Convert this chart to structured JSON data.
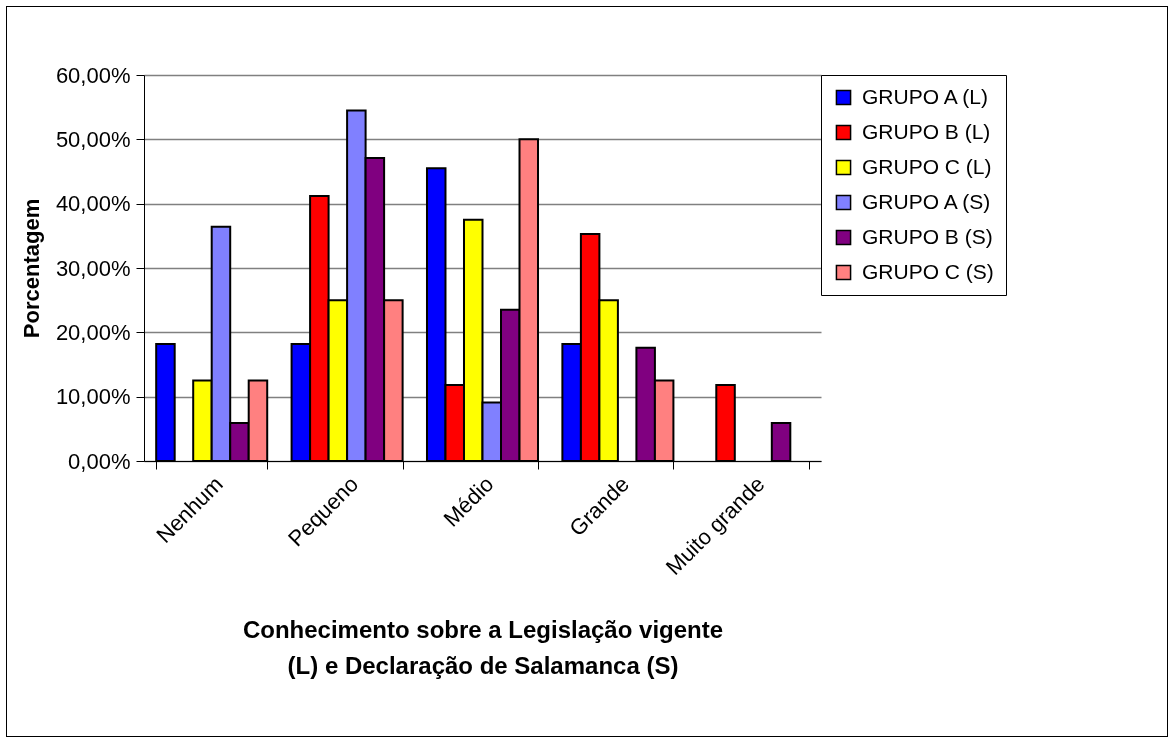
{
  "chart_data": {
    "type": "bar",
    "xlabel": "Conhecimento sobre a Legislação vigente\n(L) e Declaração de Salamanca (S)",
    "ylabel": "Porcentagem",
    "categories": [
      "Nenhum",
      "Pequeno",
      "Médio",
      "Grande",
      "Muito grande"
    ],
    "series": [
      {
        "name": "GRUPO A (L)",
        "color": "#0000ff",
        "values": [
          18.2,
          18.2,
          45.5,
          18.2,
          null
        ]
      },
      {
        "name": "GRUPO B (L)",
        "color": "#ff0000",
        "values": [
          null,
          41.2,
          11.8,
          35.3,
          11.8
        ]
      },
      {
        "name": "GRUPO C (L)",
        "color": "#ffff00",
        "values": [
          12.5,
          25,
          37.5,
          25,
          null
        ]
      },
      {
        "name": "GRUPO A (S)",
        "color": "#8080ff",
        "values": [
          36.4,
          54.5,
          9.1,
          null,
          null
        ]
      },
      {
        "name": "GRUPO B (S)",
        "color": "#800080",
        "values": [
          5.9,
          47.1,
          23.5,
          17.6,
          5.9
        ]
      },
      {
        "name": "GRUPO C (S)",
        "color": "#ff8080",
        "values": [
          12.5,
          25,
          50,
          12.5,
          null
        ]
      }
    ],
    "ylim": [
      0,
      60
    ],
    "yticks": [
      {
        "value": 0,
        "label": "0,00%"
      },
      {
        "value": 10,
        "label": "10,00%"
      },
      {
        "value": 20,
        "label": "20,00%"
      },
      {
        "value": 30,
        "label": "30,00%"
      },
      {
        "value": 40,
        "label": "40,00%"
      },
      {
        "value": 50,
        "label": "50,00%"
      },
      {
        "value": 60,
        "label": "60,00%"
      }
    ],
    "grid": "y",
    "legend": "right"
  }
}
